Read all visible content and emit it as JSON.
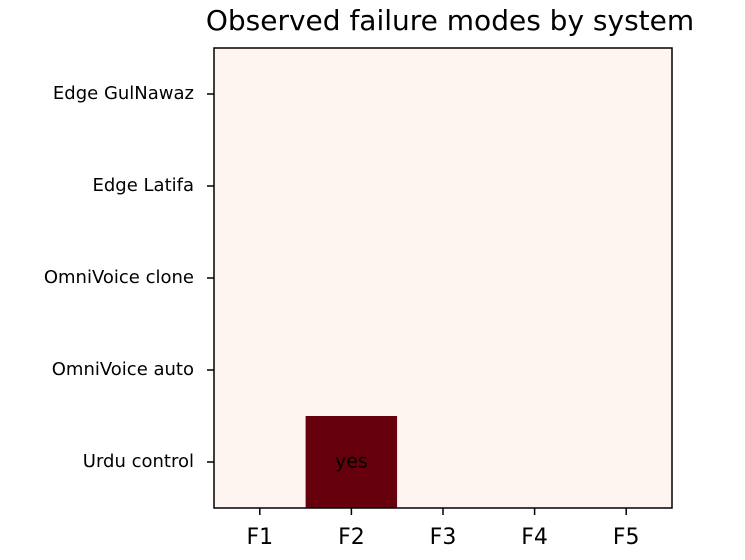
{
  "chart_data": {
    "type": "heatmap",
    "title": "Observed failure modes by system",
    "x_categories": [
      "F1",
      "F2",
      "F3",
      "F4",
      "F5"
    ],
    "y_categories": [
      "Edge GulNawaz",
      "Edge Latifa",
      "OmniVoice clone",
      "OmniVoice auto",
      "Urdu control"
    ],
    "values": [
      [
        0,
        0,
        0,
        0,
        0
      ],
      [
        0,
        0,
        0,
        0,
        0
      ],
      [
        0,
        0,
        0,
        0,
        0
      ],
      [
        0,
        0,
        0,
        0,
        0
      ],
      [
        0,
        1,
        0,
        0,
        0
      ]
    ],
    "value_labels": [
      [
        null,
        null,
        null,
        null,
        null
      ],
      [
        null,
        null,
        null,
        null,
        null
      ],
      [
        null,
        null,
        null,
        null,
        null
      ],
      [
        null,
        null,
        null,
        null,
        null
      ],
      [
        null,
        "yes",
        null,
        null,
        null
      ]
    ],
    "colors": [
      "#fff5f0",
      "#67000d"
    ]
  }
}
